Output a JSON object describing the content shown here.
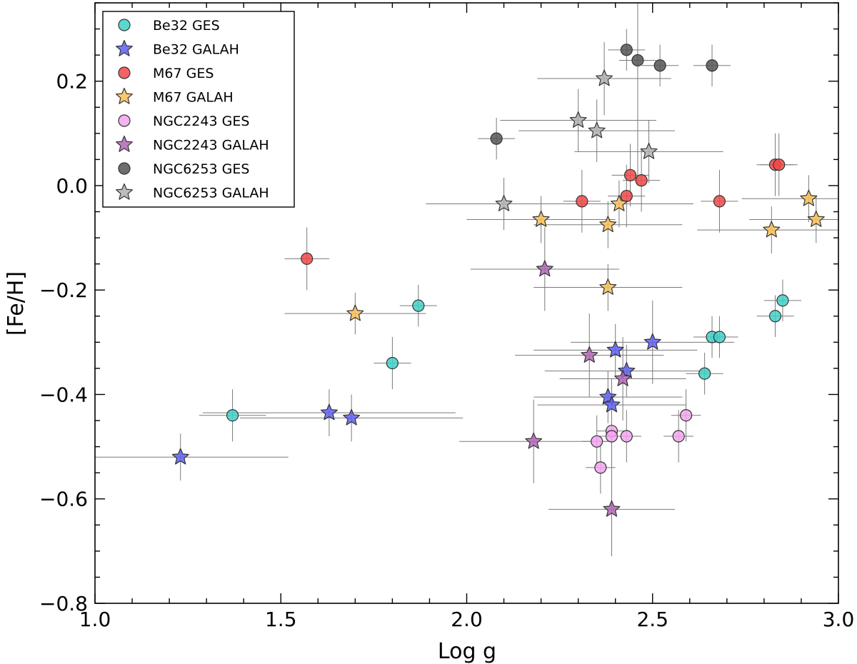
{
  "chart_data": {
    "type": "scatter",
    "title": "",
    "xlabel": "Log g",
    "ylabel": "[Fe/H]",
    "xlim": [
      1.0,
      3.0
    ],
    "ylim": [
      -0.8,
      0.35
    ],
    "x_ticks": [
      1.0,
      1.5,
      2.0,
      2.5,
      3.0
    ],
    "x_tick_labels": [
      "1.0",
      "1.5",
      "2.0",
      "2.5",
      "3.0"
    ],
    "y_ticks": [
      -0.8,
      -0.6,
      -0.4,
      -0.2,
      0.0,
      0.2
    ],
    "y_tick_labels": [
      "−0.8",
      "−0.6",
      "−0.4",
      "−0.2",
      "0.0",
      "0.2"
    ],
    "grid": false,
    "legend_position": "top-left",
    "series": [
      {
        "name": "Be32  GES",
        "marker": "circle",
        "color": "#40d0c8",
        "points": [
          {
            "x": 1.37,
            "y": -0.44,
            "xerr": 0.09,
            "yerr": 0.05
          },
          {
            "x": 1.8,
            "y": -0.34,
            "xerr": 0.05,
            "yerr": 0.05
          },
          {
            "x": 1.87,
            "y": -0.23,
            "xerr": 0.05,
            "yerr": 0.04
          },
          {
            "x": 2.64,
            "y": -0.36,
            "xerr": 0.05,
            "yerr": 0.04
          },
          {
            "x": 2.66,
            "y": -0.29,
            "xerr": 0.05,
            "yerr": 0.04
          },
          {
            "x": 2.68,
            "y": -0.29,
            "xerr": 0.05,
            "yerr": 0.04
          },
          {
            "x": 2.83,
            "y": -0.25,
            "xerr": 0.05,
            "yerr": 0.04
          },
          {
            "x": 2.85,
            "y": -0.22,
            "xerr": 0.05,
            "yerr": 0.04
          }
        ]
      },
      {
        "name": "Be32 GALAH",
        "marker": "star",
        "color": "#5f5ff5",
        "points": [
          {
            "x": 1.23,
            "y": -0.52,
            "xerr": 0.29,
            "yerr": 0.045
          },
          {
            "x": 1.63,
            "y": -0.435,
            "xerr": 0.34,
            "yerr": 0.045
          },
          {
            "x": 1.69,
            "y": -0.445,
            "xerr": 0.3,
            "yerr": 0.045
          },
          {
            "x": 2.38,
            "y": -0.405,
            "xerr": 0.2,
            "yerr": 0.05
          },
          {
            "x": 2.39,
            "y": -0.42,
            "xerr": 0.2,
            "yerr": 0.05
          },
          {
            "x": 2.4,
            "y": -0.315,
            "xerr": 0.22,
            "yerr": 0.05
          },
          {
            "x": 2.43,
            "y": -0.355,
            "xerr": 0.22,
            "yerr": 0.05
          },
          {
            "x": 2.5,
            "y": -0.3,
            "xerr": 0.22,
            "yerr": 0.08
          }
        ]
      },
      {
        "name": "M67  GES",
        "marker": "circle",
        "color": "#f04848",
        "points": [
          {
            "x": 1.57,
            "y": -0.14,
            "xerr": 0.06,
            "yerr": 0.06
          },
          {
            "x": 2.31,
            "y": -0.03,
            "xerr": 0.05,
            "yerr": 0.06
          },
          {
            "x": 2.43,
            "y": -0.02,
            "xerr": 0.05,
            "yerr": 0.06
          },
          {
            "x": 2.44,
            "y": 0.02,
            "xerr": 0.05,
            "yerr": 0.06
          },
          {
            "x": 2.47,
            "y": 0.01,
            "xerr": 0.05,
            "yerr": 0.06
          },
          {
            "x": 2.68,
            "y": -0.03,
            "xerr": 0.05,
            "yerr": 0.06
          },
          {
            "x": 2.83,
            "y": 0.04,
            "xerr": 0.05,
            "yerr": 0.06
          },
          {
            "x": 2.84,
            "y": 0.04,
            "xerr": 0.05,
            "yerr": 0.06
          }
        ]
      },
      {
        "name": "M67 GALAH",
        "marker": "star",
        "color": "#f8c058",
        "points": [
          {
            "x": 1.7,
            "y": -0.245,
            "xerr": 0.19,
            "yerr": 0.04
          },
          {
            "x": 2.2,
            "y": -0.065,
            "xerr": 0.2,
            "yerr": 0.045
          },
          {
            "x": 2.38,
            "y": -0.075,
            "xerr": 0.2,
            "yerr": 0.045
          },
          {
            "x": 2.38,
            "y": -0.195,
            "xerr": 0.2,
            "yerr": 0.045
          },
          {
            "x": 2.41,
            "y": -0.035,
            "xerr": 0.2,
            "yerr": 0.045
          },
          {
            "x": 2.82,
            "y": -0.085,
            "xerr": 0.2,
            "yerr": 0.045
          },
          {
            "x": 2.92,
            "y": -0.025,
            "xerr": 0.18,
            "yerr": 0.045
          },
          {
            "x": 2.94,
            "y": -0.065,
            "xerr": 0.18,
            "yerr": 0.045
          }
        ]
      },
      {
        "name": "NGC2243  GES",
        "marker": "circle",
        "color": "#f2a4ee",
        "points": [
          {
            "x": 2.35,
            "y": -0.49,
            "xerr": 0.04,
            "yerr": 0.05
          },
          {
            "x": 2.36,
            "y": -0.54,
            "xerr": 0.04,
            "yerr": 0.05
          },
          {
            "x": 2.39,
            "y": -0.47,
            "xerr": 0.04,
            "yerr": 0.05
          },
          {
            "x": 2.39,
            "y": -0.48,
            "xerr": 0.04,
            "yerr": 0.05
          },
          {
            "x": 2.43,
            "y": -0.48,
            "xerr": 0.04,
            "yerr": 0.05
          },
          {
            "x": 2.57,
            "y": -0.48,
            "xerr": 0.04,
            "yerr": 0.05
          },
          {
            "x": 2.59,
            "y": -0.44,
            "xerr": 0.04,
            "yerr": 0.05
          }
        ]
      },
      {
        "name": "NGC2243 GALAH",
        "marker": "star",
        "color": "#b066b4",
        "points": [
          {
            "x": 2.18,
            "y": -0.49,
            "xerr": 0.2,
            "yerr": 0.08
          },
          {
            "x": 2.21,
            "y": -0.16,
            "xerr": 0.2,
            "yerr": 0.08
          },
          {
            "x": 2.33,
            "y": -0.325,
            "xerr": 0.2,
            "yerr": 0.08
          },
          {
            "x": 2.39,
            "y": -0.62,
            "xerr": 0.17,
            "yerr": 0.09
          },
          {
            "x": 2.42,
            "y": -0.37,
            "xerr": 0.17,
            "yerr": 0.08
          }
        ]
      },
      {
        "name": "NGC6253  GES",
        "marker": "circle",
        "color": "#555555",
        "points": [
          {
            "x": 2.08,
            "y": 0.09,
            "xerr": 0.05,
            "yerr": 0.04
          },
          {
            "x": 2.43,
            "y": 0.26,
            "xerr": 0.05,
            "yerr": 0.04
          },
          {
            "x": 2.46,
            "y": 0.24,
            "xerr": 0.05,
            "yerr": 0.24
          },
          {
            "x": 2.52,
            "y": 0.23,
            "xerr": 0.05,
            "yerr": 0.04
          },
          {
            "x": 2.66,
            "y": 0.23,
            "xerr": 0.05,
            "yerr": 0.04
          }
        ]
      },
      {
        "name": "NGC6253 GALAH",
        "marker": "star",
        "color": "#b0b0b0",
        "points": [
          {
            "x": 2.1,
            "y": -0.035,
            "xerr": 0.21,
            "yerr": 0.05
          },
          {
            "x": 2.3,
            "y": 0.125,
            "xerr": 0.21,
            "yerr": 0.06
          },
          {
            "x": 2.35,
            "y": 0.105,
            "xerr": 0.21,
            "yerr": 0.06
          },
          {
            "x": 2.37,
            "y": 0.205,
            "xerr": 0.18,
            "yerr": 0.07
          },
          {
            "x": 2.49,
            "y": 0.065,
            "xerr": 0.2,
            "yerr": 0.06
          }
        ]
      }
    ]
  }
}
